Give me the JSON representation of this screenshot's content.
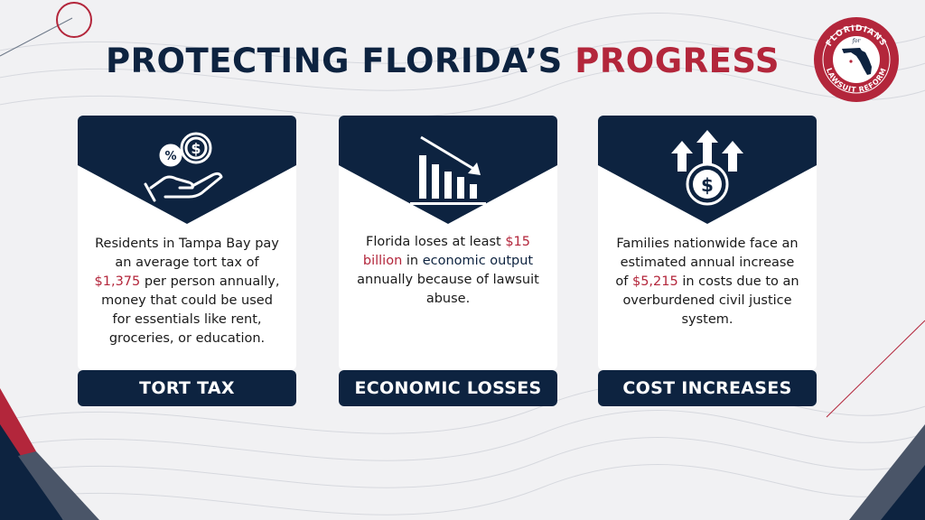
{
  "title": {
    "part1": "PROTECTING FLORIDA’S",
    "part2": "PROGRESS"
  },
  "logo": {
    "top": "FLORIDIANS",
    "middle": "for",
    "bottom": "LAWSUIT REFORM"
  },
  "cards": [
    {
      "icon": "hand-holding-dollar-percent-icon",
      "body": [
        "Residents in Tampa Bay pay an average tort tax of ",
        "$1,375",
        " per person annually, money that could be used for essentials like rent, groceries, or education."
      ],
      "label": "TORT TAX"
    },
    {
      "icon": "declining-bar-chart-icon",
      "body": [
        "Florida loses at least ",
        "$15 billion",
        " in ",
        "economic output",
        " annually because of lawsuit abuse."
      ],
      "label": "ECONOMIC LOSSES"
    },
    {
      "icon": "dollar-coin-rising-arrows-icon",
      "body": [
        "Families nationwide face an estimated annual increase of ",
        "$5,215",
        " in costs due to an overburdened civil justice system."
      ],
      "label": "COST INCREASES"
    }
  ],
  "colors": {
    "navy": "#0d2340",
    "red": "#b3263b",
    "background": "#f1f1f3"
  }
}
